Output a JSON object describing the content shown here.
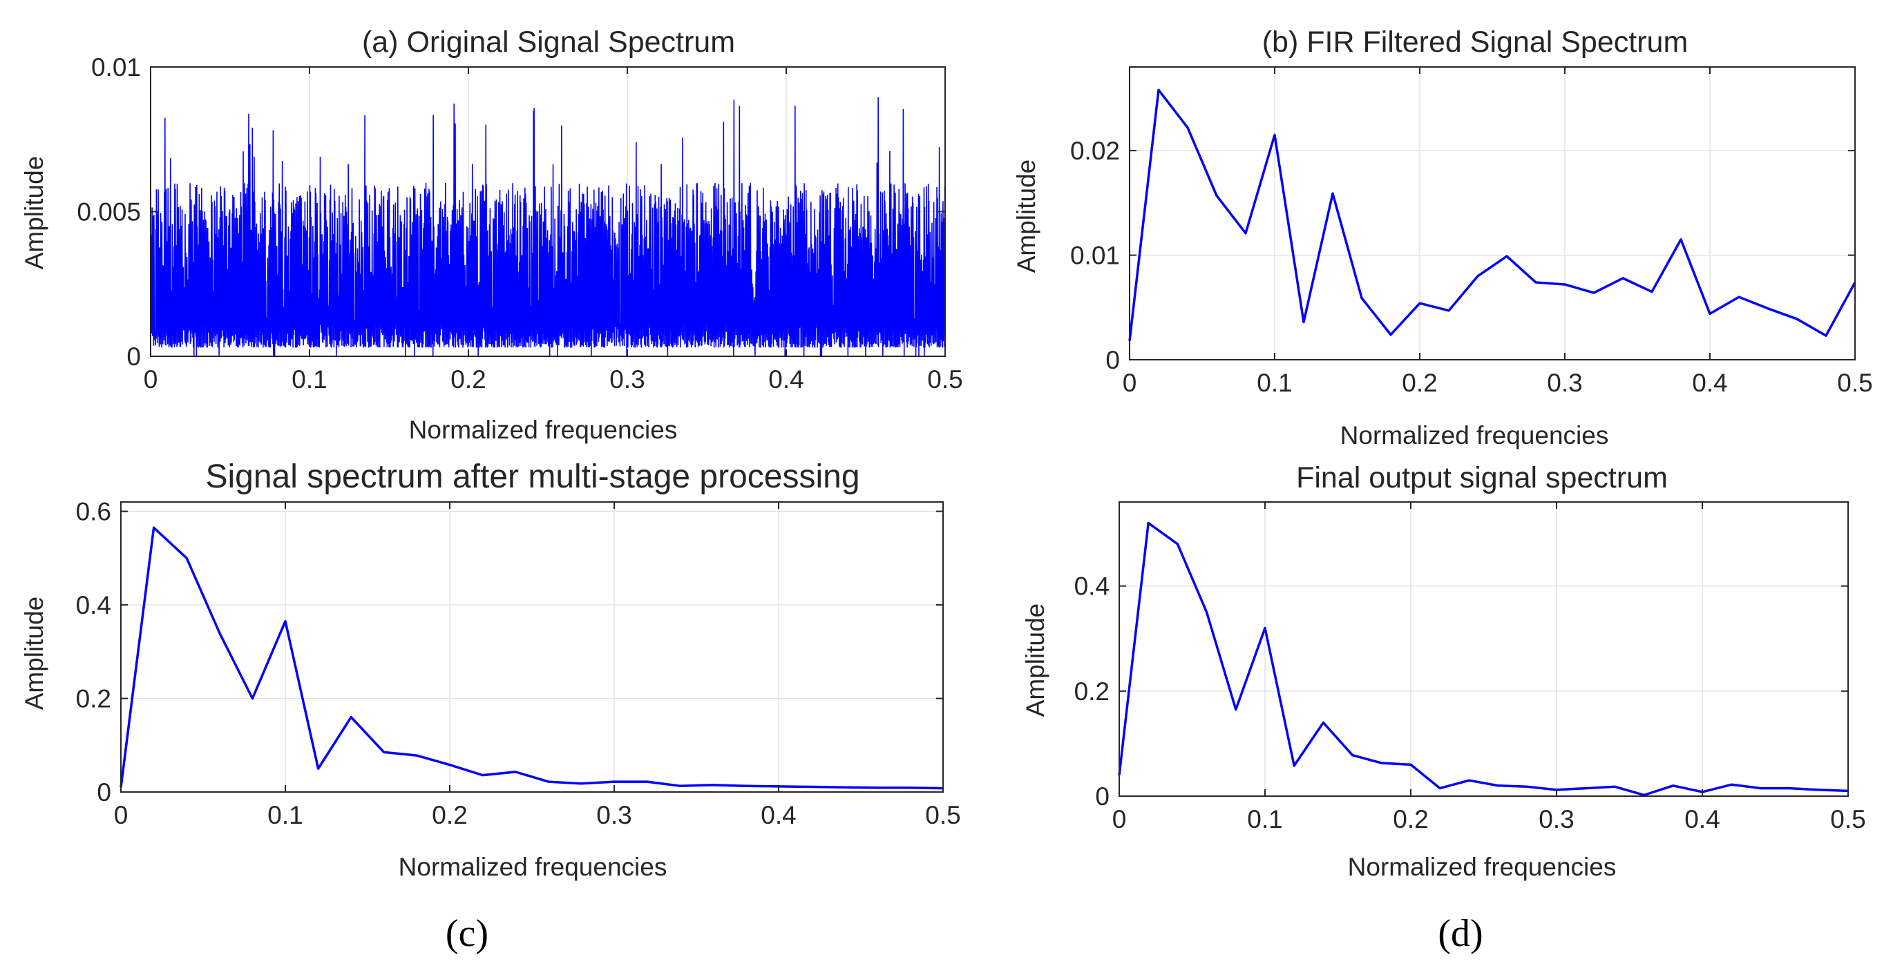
{
  "colors": {
    "series": "#0000ff",
    "axis": "#262626",
    "grid": "#e3e3e3"
  },
  "chart_data": [
    {
      "id": "a",
      "type": "line",
      "title": "(a) Original Signal Spectrum",
      "xlabel": "Normalized frequencies",
      "ylabel": "Amplitude",
      "xlim": [
        0,
        0.5
      ],
      "ylim": [
        0,
        0.01
      ],
      "xticks": [
        0,
        0.1,
        0.2,
        0.3,
        0.4,
        0.5
      ],
      "xtick_labels": [
        "0",
        "0.1",
        "0.2",
        "0.3",
        "0.4",
        "0.5"
      ],
      "yticks": [
        0,
        0.005,
        0.01
      ],
      "ytick_labels": [
        "0",
        "0.005",
        "0.01"
      ],
      "grid": true,
      "dense_noise": {
        "x_range": [
          0,
          0.5
        ],
        "typical_band": [
          0.0003,
          0.006
        ],
        "peak_max": 0.0091,
        "initial_spike": 0.01,
        "min_floor": 0.0
      },
      "series": []
    },
    {
      "id": "b",
      "type": "line",
      "title": "(b) FIR Filtered Signal Spectrum",
      "xlabel": "Normalized frequencies",
      "ylabel": "Amplitude",
      "xlim": [
        0,
        0.5
      ],
      "ylim": [
        0,
        0.028
      ],
      "xticks": [
        0,
        0.1,
        0.2,
        0.3,
        0.4,
        0.5
      ],
      "xtick_labels": [
        "0",
        "0.1",
        "0.2",
        "0.3",
        "0.4",
        "0.5"
      ],
      "yticks": [
        0,
        0.01,
        0.02
      ],
      "ytick_labels": [
        "0",
        "0.01",
        "0.02"
      ],
      "grid": true,
      "series": [
        {
          "x": [
            0,
            0.02,
            0.04,
            0.06,
            0.08,
            0.1,
            0.12,
            0.14,
            0.16,
            0.18,
            0.2,
            0.22,
            0.24,
            0.26,
            0.28,
            0.3,
            0.32,
            0.34,
            0.36,
            0.38,
            0.4,
            0.42,
            0.44,
            0.46,
            0.48,
            0.5
          ],
          "y": [
            0.0018,
            0.0258,
            0.0222,
            0.0157,
            0.0121,
            0.0215,
            0.0036,
            0.0159,
            0.0059,
            0.0024,
            0.0054,
            0.0047,
            0.008,
            0.0099,
            0.0074,
            0.0072,
            0.0064,
            0.0078,
            0.0065,
            0.0115,
            0.0044,
            0.006,
            0.0049,
            0.0039,
            0.0023,
            0.0074
          ]
        }
      ]
    },
    {
      "id": "c",
      "type": "line",
      "title": "Signal spectrum after multi-stage processing",
      "xlabel": "Normalized frequencies",
      "ylabel": "Amplitude",
      "xlim": [
        0,
        0.5
      ],
      "ylim": [
        0,
        0.62
      ],
      "xticks": [
        0,
        0.1,
        0.2,
        0.3,
        0.4,
        0.5
      ],
      "xtick_labels": [
        "0",
        "0.1",
        "0.2",
        "0.3",
        "0.4",
        "0.5"
      ],
      "yticks": [
        0,
        0.2,
        0.4,
        0.6
      ],
      "ytick_labels": [
        "0",
        "0.2",
        "0.4",
        "0.6"
      ],
      "grid": true,
      "series": [
        {
          "x": [
            0,
            0.02,
            0.04,
            0.06,
            0.08,
            0.1,
            0.12,
            0.14,
            0.16,
            0.18,
            0.2,
            0.22,
            0.24,
            0.26,
            0.28,
            0.3,
            0.32,
            0.34,
            0.36,
            0.38,
            0.4,
            0.42,
            0.44,
            0.46,
            0.48,
            0.5
          ],
          "y": [
            0.01,
            0.565,
            0.5,
            0.34,
            0.2,
            0.365,
            0.05,
            0.16,
            0.085,
            0.078,
            0.058,
            0.036,
            0.043,
            0.022,
            0.018,
            0.022,
            0.022,
            0.013,
            0.015,
            0.013,
            0.012,
            0.011,
            0.01,
            0.009,
            0.009,
            0.008
          ]
        }
      ]
    },
    {
      "id": "d",
      "type": "line",
      "title": "Final output signal spectrum",
      "xlabel": "Normalized frequencies",
      "ylabel": "Amplitude",
      "xlim": [
        0,
        0.5
      ],
      "ylim": [
        0,
        0.56
      ],
      "xticks": [
        0,
        0.1,
        0.2,
        0.3,
        0.4,
        0.5
      ],
      "xtick_labels": [
        "0",
        "0.1",
        "0.2",
        "0.3",
        "0.4",
        "0.5"
      ],
      "yticks": [
        0,
        0.2,
        0.4
      ],
      "ytick_labels": [
        "0",
        "0.2",
        "0.4"
      ],
      "grid": true,
      "series": [
        {
          "x": [
            0,
            0.02,
            0.04,
            0.06,
            0.08,
            0.1,
            0.12,
            0.14,
            0.16,
            0.18,
            0.2,
            0.22,
            0.24,
            0.26,
            0.28,
            0.3,
            0.32,
            0.34,
            0.36,
            0.38,
            0.4,
            0.42,
            0.44,
            0.46,
            0.48,
            0.5
          ],
          "y": [
            0.04,
            0.52,
            0.48,
            0.35,
            0.165,
            0.32,
            0.058,
            0.14,
            0.078,
            0.063,
            0.06,
            0.015,
            0.03,
            0.02,
            0.018,
            0.012,
            0.015,
            0.018,
            0.002,
            0.02,
            0.008,
            0.022,
            0.015,
            0.015,
            0.012,
            0.01
          ]
        }
      ]
    }
  ],
  "panel_labels": [
    "(c)",
    "(d)"
  ]
}
